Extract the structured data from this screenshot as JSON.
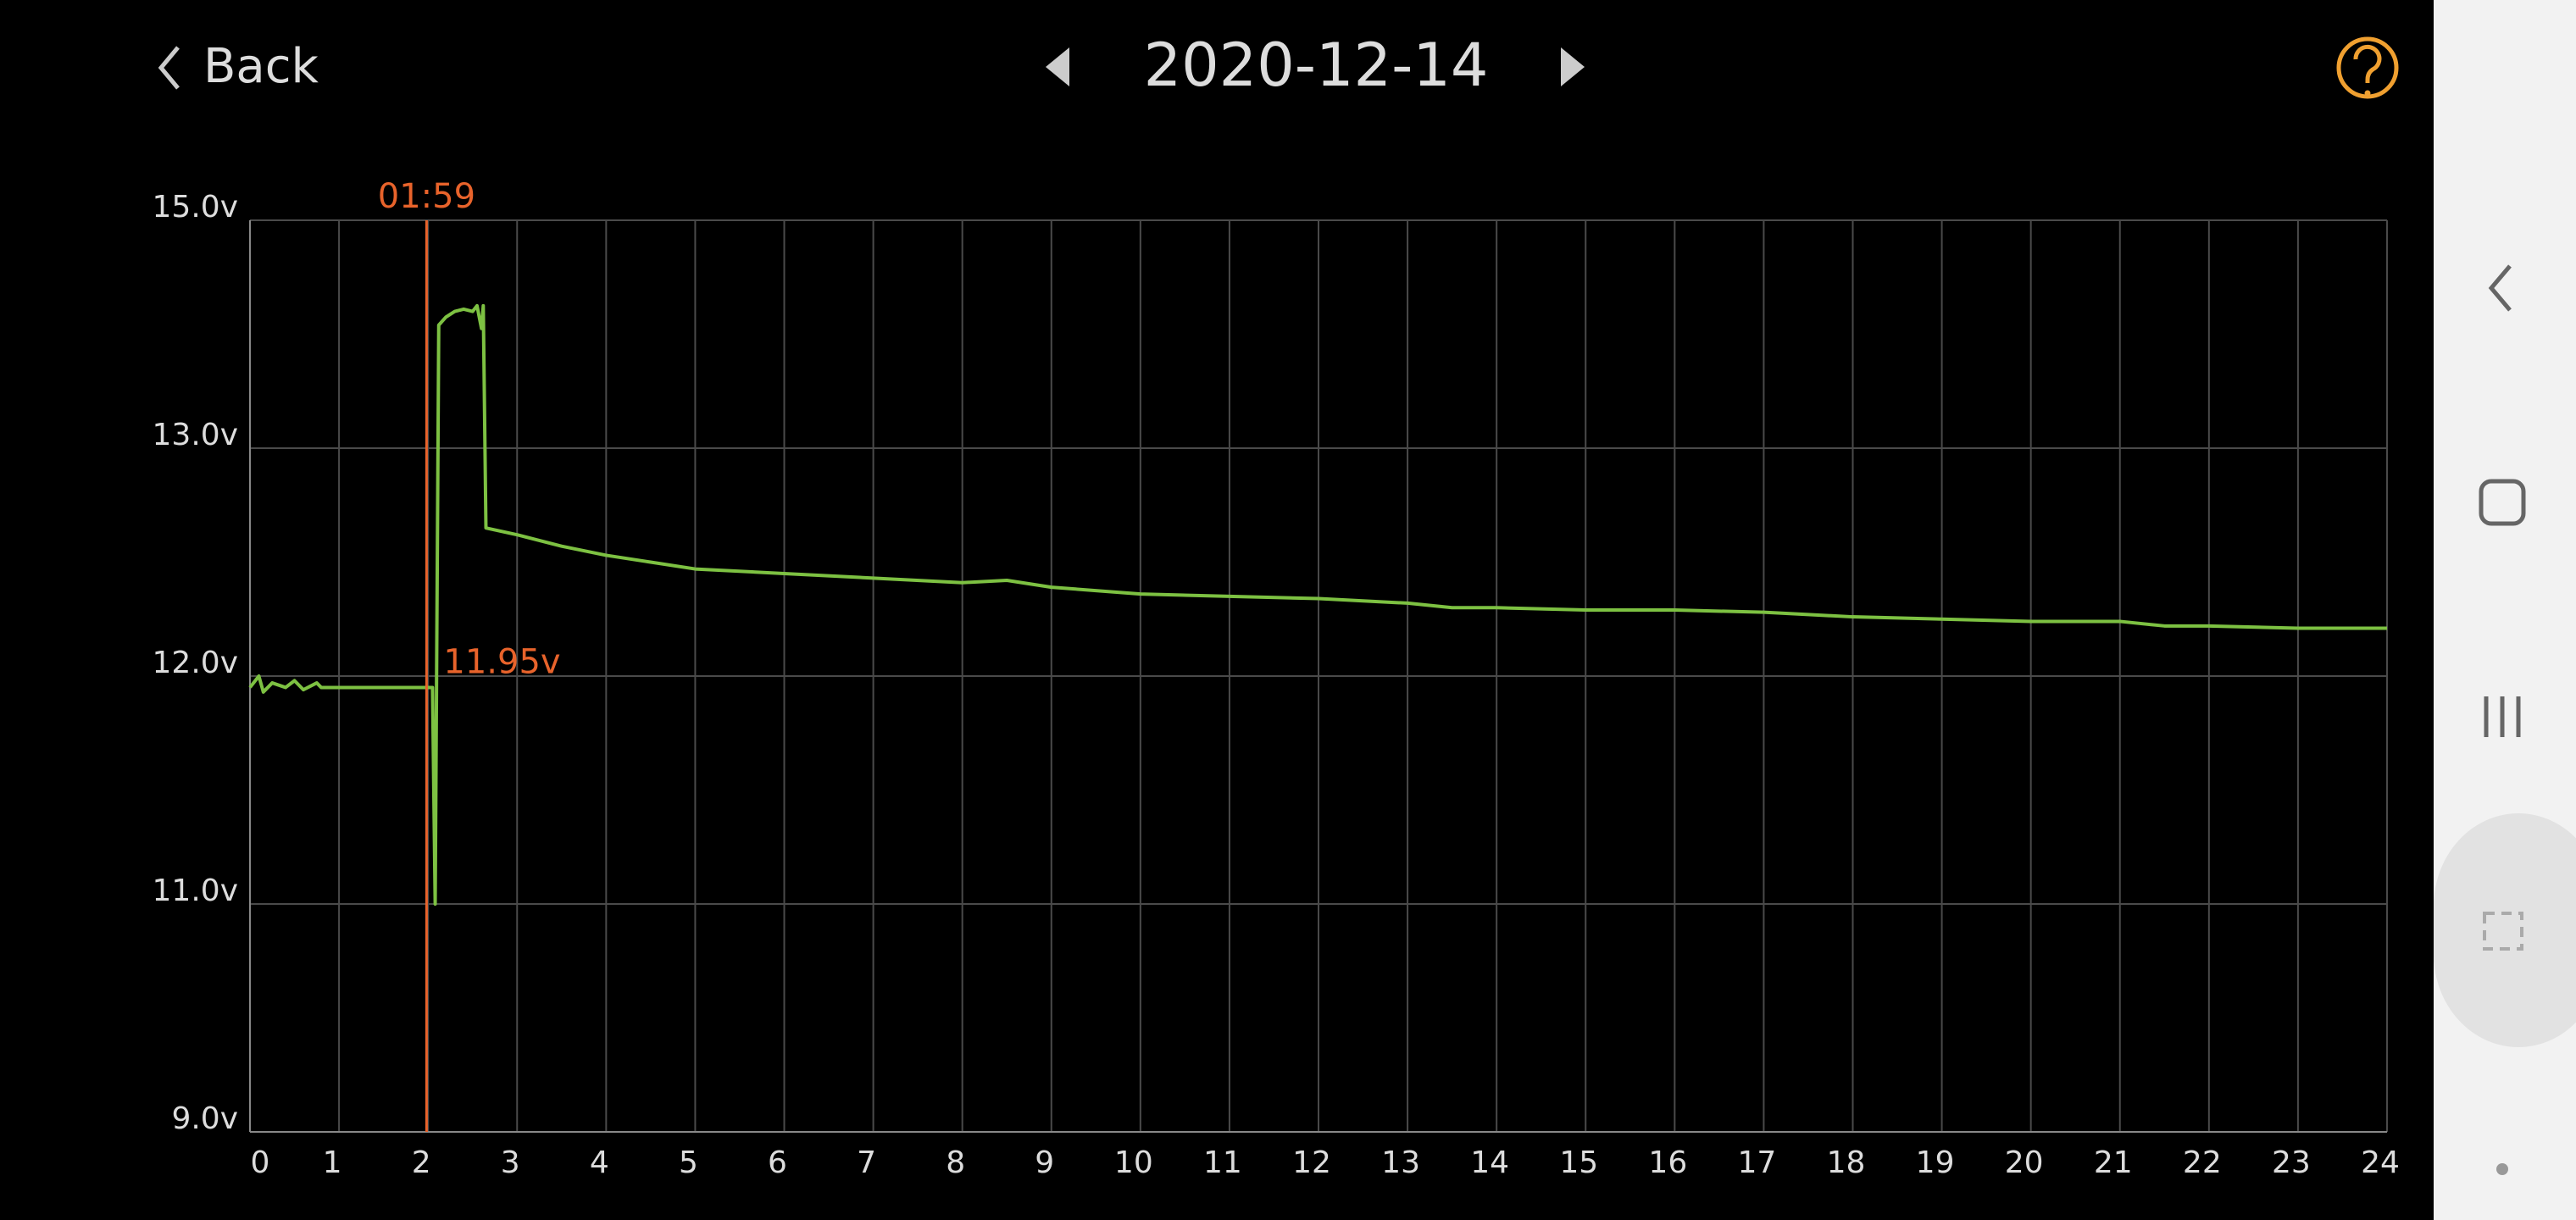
{
  "header": {
    "back": "Back",
    "date": "2020-12-14"
  },
  "chart_data": {
    "type": "line",
    "x": [
      0,
      0.1,
      0.15,
      0.25,
      0.4,
      0.5,
      0.6,
      0.75,
      0.8,
      1,
      1.25,
      1.5,
      1.75,
      2,
      2.05,
      2.08,
      2.12,
      2.2,
      2.3,
      2.4,
      2.5,
      2.55,
      2.6,
      2.62,
      2.65,
      3,
      3.5,
      4,
      4.5,
      5,
      6,
      7,
      8,
      8.5,
      9,
      10,
      11,
      12,
      13,
      13.5,
      14,
      15,
      16,
      17,
      17.5,
      18,
      19,
      20,
      21,
      21.5,
      22,
      23,
      24
    ],
    "series": [
      {
        "color": "#7dc142",
        "values": [
          11.95,
          12.0,
          11.93,
          11.97,
          11.95,
          11.98,
          11.94,
          11.97,
          11.95,
          11.95,
          11.95,
          11.95,
          11.95,
          11.95,
          11.95,
          11.0,
          14.08,
          14.15,
          14.2,
          14.22,
          14.2,
          14.25,
          14.05,
          14.25,
          12.65,
          12.62,
          12.57,
          12.53,
          12.5,
          12.47,
          12.45,
          12.43,
          12.41,
          12.42,
          12.39,
          12.36,
          12.35,
          12.34,
          12.32,
          12.3,
          12.3,
          12.29,
          12.29,
          12.28,
          12.27,
          12.26,
          12.25,
          12.24,
          12.24,
          12.22,
          12.22,
          12.21,
          12.21
        ]
      }
    ],
    "xlim": [
      0,
      24
    ],
    "xticks": [
      0,
      1,
      2,
      3,
      4,
      5,
      6,
      7,
      8,
      9,
      10,
      11,
      12,
      13,
      14,
      15,
      16,
      17,
      18,
      19,
      20,
      21,
      22,
      23,
      24
    ],
    "ylim": [
      9,
      15
    ],
    "yticks": [
      {
        "value": 9,
        "label": "9.0v"
      },
      {
        "value": 11,
        "label": "11.0v"
      },
      {
        "value": 12,
        "label": "12.0v"
      },
      {
        "value": 13,
        "label": "13.0v"
      },
      {
        "value": 15,
        "label": "15.0v"
      }
    ],
    "grid": true,
    "cursor": {
      "x": 1.9833,
      "x_label": "01:59",
      "value": 11.95,
      "value_label": "11.95v",
      "color": "#e8632b"
    }
  }
}
